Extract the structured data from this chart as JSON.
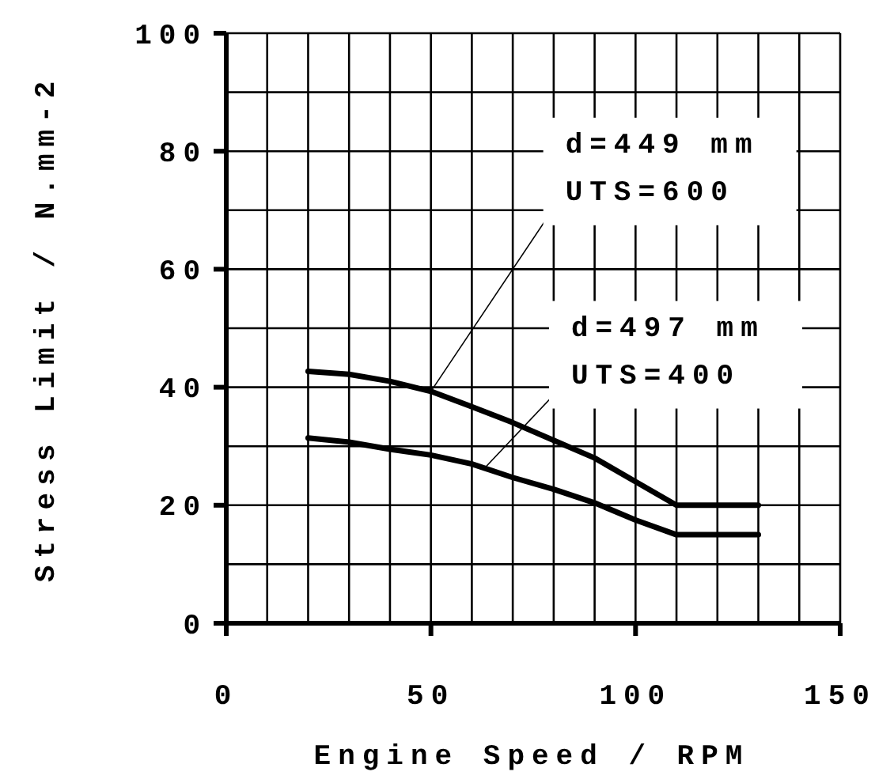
{
  "chart_data": {
    "type": "line",
    "xlabel": "Engine Speed / RPM",
    "ylabel": "Stress Limit / N.mm-2",
    "x": [
      20,
      30,
      40,
      50,
      60,
      70,
      80,
      90,
      100,
      110,
      130
    ],
    "series": [
      {
        "color": "#000000",
        "values": [
          42.7,
          42.2,
          41,
          39.3,
          36.7,
          34,
          31,
          28,
          24,
          20,
          20
        ]
      },
      {
        "color": "#000000",
        "values": [
          31.4,
          30.7,
          29.5,
          28.5,
          27,
          24.7,
          22.7,
          20.4,
          17.5,
          15,
          15
        ]
      }
    ],
    "xlim": [
      0,
      150
    ],
    "ylim": [
      0,
      100
    ],
    "xticks": [
      0,
      {
        "value": 10,
        "label": null
      },
      {
        "value": 20,
        "label": null
      },
      {
        "value": 30,
        "label": null
      },
      {
        "value": 40,
        "label": null
      },
      50,
      {
        "value": 60,
        "label": null
      },
      {
        "value": 70,
        "label": null
      },
      {
        "value": 80,
        "label": null
      },
      {
        "value": 90,
        "label": null
      },
      100,
      {
        "value": 110,
        "label": null
      },
      {
        "value": 120,
        "label": null
      },
      {
        "value": 130,
        "label": null
      },
      {
        "value": 140,
        "label": null
      },
      150
    ],
    "yticks": [
      0,
      {
        "value": 10,
        "label": null
      },
      20,
      {
        "value": 30,
        "label": null
      },
      40,
      {
        "value": 50,
        "label": null
      },
      60,
      {
        "value": 70,
        "label": null
      },
      80,
      {
        "value": 90,
        "label": null
      },
      100
    ],
    "grid": true,
    "marker": "none",
    "line_style": "solid",
    "annotations": [
      {
        "text": "d=449 mm\nUTS=600",
        "x": 50,
        "y": 39.3
      },
      {
        "text": "d=497 mm\nUTS=400",
        "x": 63,
        "y": 26.2
      }
    ]
  }
}
